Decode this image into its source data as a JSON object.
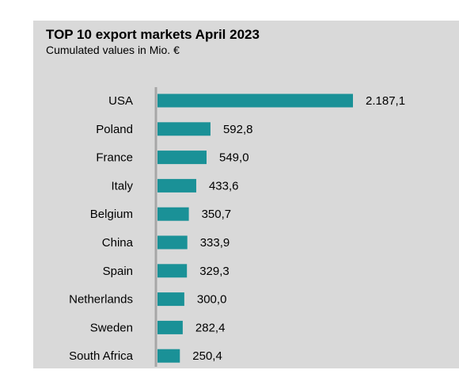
{
  "chart_data": {
    "type": "bar",
    "orientation": "horizontal",
    "title": "TOP 10 export markets April 2023",
    "subtitle": "Cumulated values in Mio. €",
    "categories": [
      "USA",
      "Poland",
      "France",
      "Italy",
      "Belgium",
      "China",
      "Spain",
      "Netherlands",
      "Sweden",
      "South Africa"
    ],
    "values": [
      2187.1,
      592.8,
      549.0,
      433.6,
      350.7,
      333.9,
      329.3,
      300.0,
      282.4,
      250.4
    ],
    "value_labels": [
      "2.187,1",
      "592,8",
      "549,0",
      "433,6",
      "350,7",
      "333,9",
      "329,3",
      "300,0",
      "282,4",
      "250,4"
    ],
    "bar_color": "#1a9197",
    "axis_color": "#a6a6a6",
    "background_color": "#d9d9d9",
    "grid": false,
    "legend": "none"
  }
}
